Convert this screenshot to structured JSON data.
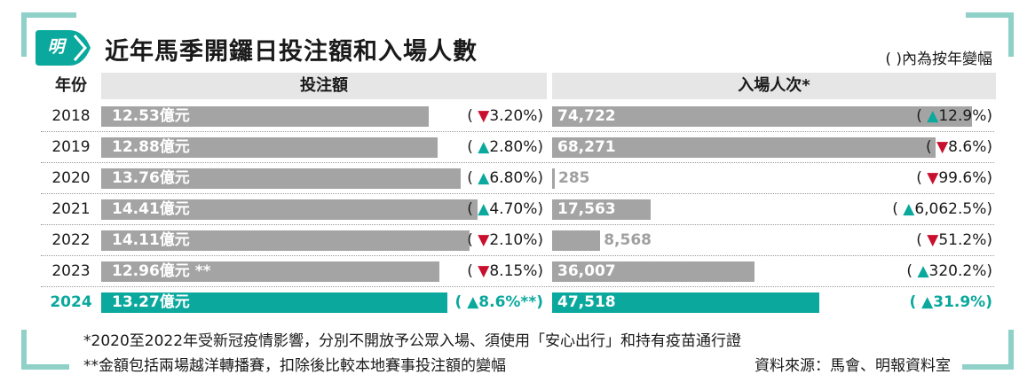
{
  "colors": {
    "frame": "#8fd0c8",
    "accent": "#0aa89d",
    "bar": "#a4a4a4",
    "down": "#c8102e",
    "up": "#0aa89d"
  },
  "logo_text": "明",
  "title": "近年馬季開鑼日投注額和入場人數",
  "note": "( )內為按年變幅",
  "headers": {
    "year": "年份",
    "bet": "投注額",
    "attendance": "入場人次*"
  },
  "chart_data": {
    "type": "bar",
    "orientation": "horizontal",
    "title": "近年馬季開鑼日投注額和入場人數",
    "categories": [
      "2018",
      "2019",
      "2020",
      "2021",
      "2022",
      "2023",
      "2024"
    ],
    "series": [
      {
        "name": "投注額",
        "unit": "億元",
        "values": [
          12.53,
          12.88,
          13.76,
          14.41,
          14.11,
          12.96,
          13.27
        ],
        "labels": [
          "12.53億元",
          "12.88億元",
          "13.76億元",
          "14.41億元",
          "14.11億元",
          "12.96億元 **",
          "13.27億元"
        ],
        "changes": [
          {
            "dir": "down",
            "text": "3.20%"
          },
          {
            "dir": "up",
            "text": "2.80%"
          },
          {
            "dir": "up",
            "text": "6.80%"
          },
          {
            "dir": "up",
            "text": "4.70%"
          },
          {
            "dir": "down",
            "text": "2.10%"
          },
          {
            "dir": "down",
            "text": "8.15%"
          },
          {
            "dir": "up",
            "text": "8.6%**"
          }
        ]
      },
      {
        "name": "入場人次*",
        "values": [
          74722,
          68271,
          285,
          17563,
          8568,
          36007,
          47518
        ],
        "labels": [
          "74,722",
          "68,271",
          "285",
          "17,563",
          "8,568",
          "36,007",
          "47,518"
        ],
        "changes": [
          {
            "dir": "up",
            "text": "12.9%"
          },
          {
            "dir": "down",
            "text": "8.6%"
          },
          {
            "dir": "down",
            "text": "99.6%"
          },
          {
            "dir": "up",
            "text": "6,062.5%"
          },
          {
            "dir": "down",
            "text": "51.2%"
          },
          {
            "dir": "up",
            "text": "320.2%"
          },
          {
            "dir": "up",
            "text": "31.9%"
          }
        ]
      }
    ],
    "highlight": "2024"
  },
  "footnotes": [
    "*2020至2022年受新冠疫情影響，分別不開放予公眾入場、須使用「安心出行」和持有疫苗通行證",
    "**金額包括兩場越洋轉播賽，扣除後比較本地賽事投注額的變幅"
  ],
  "source": "資料來源：馬會、明報資料室"
}
